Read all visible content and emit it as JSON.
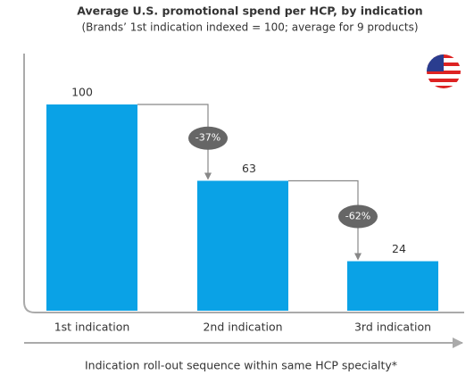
{
  "chart_data": {
    "type": "bar",
    "title": "Average U.S. promotional spend per HCP, by indication",
    "subtitle": "(Brands’ 1st indication indexed = 100; average for 9 products)",
    "x_label": "Indication roll-out sequence within same HCP specialty*",
    "categories": [
      "1st indication",
      "2nd indication",
      "3rd indication"
    ],
    "values": [
      100,
      63,
      24
    ],
    "annotations": [
      "-37%",
      "-62%"
    ],
    "color": "#0aa2e6"
  }
}
